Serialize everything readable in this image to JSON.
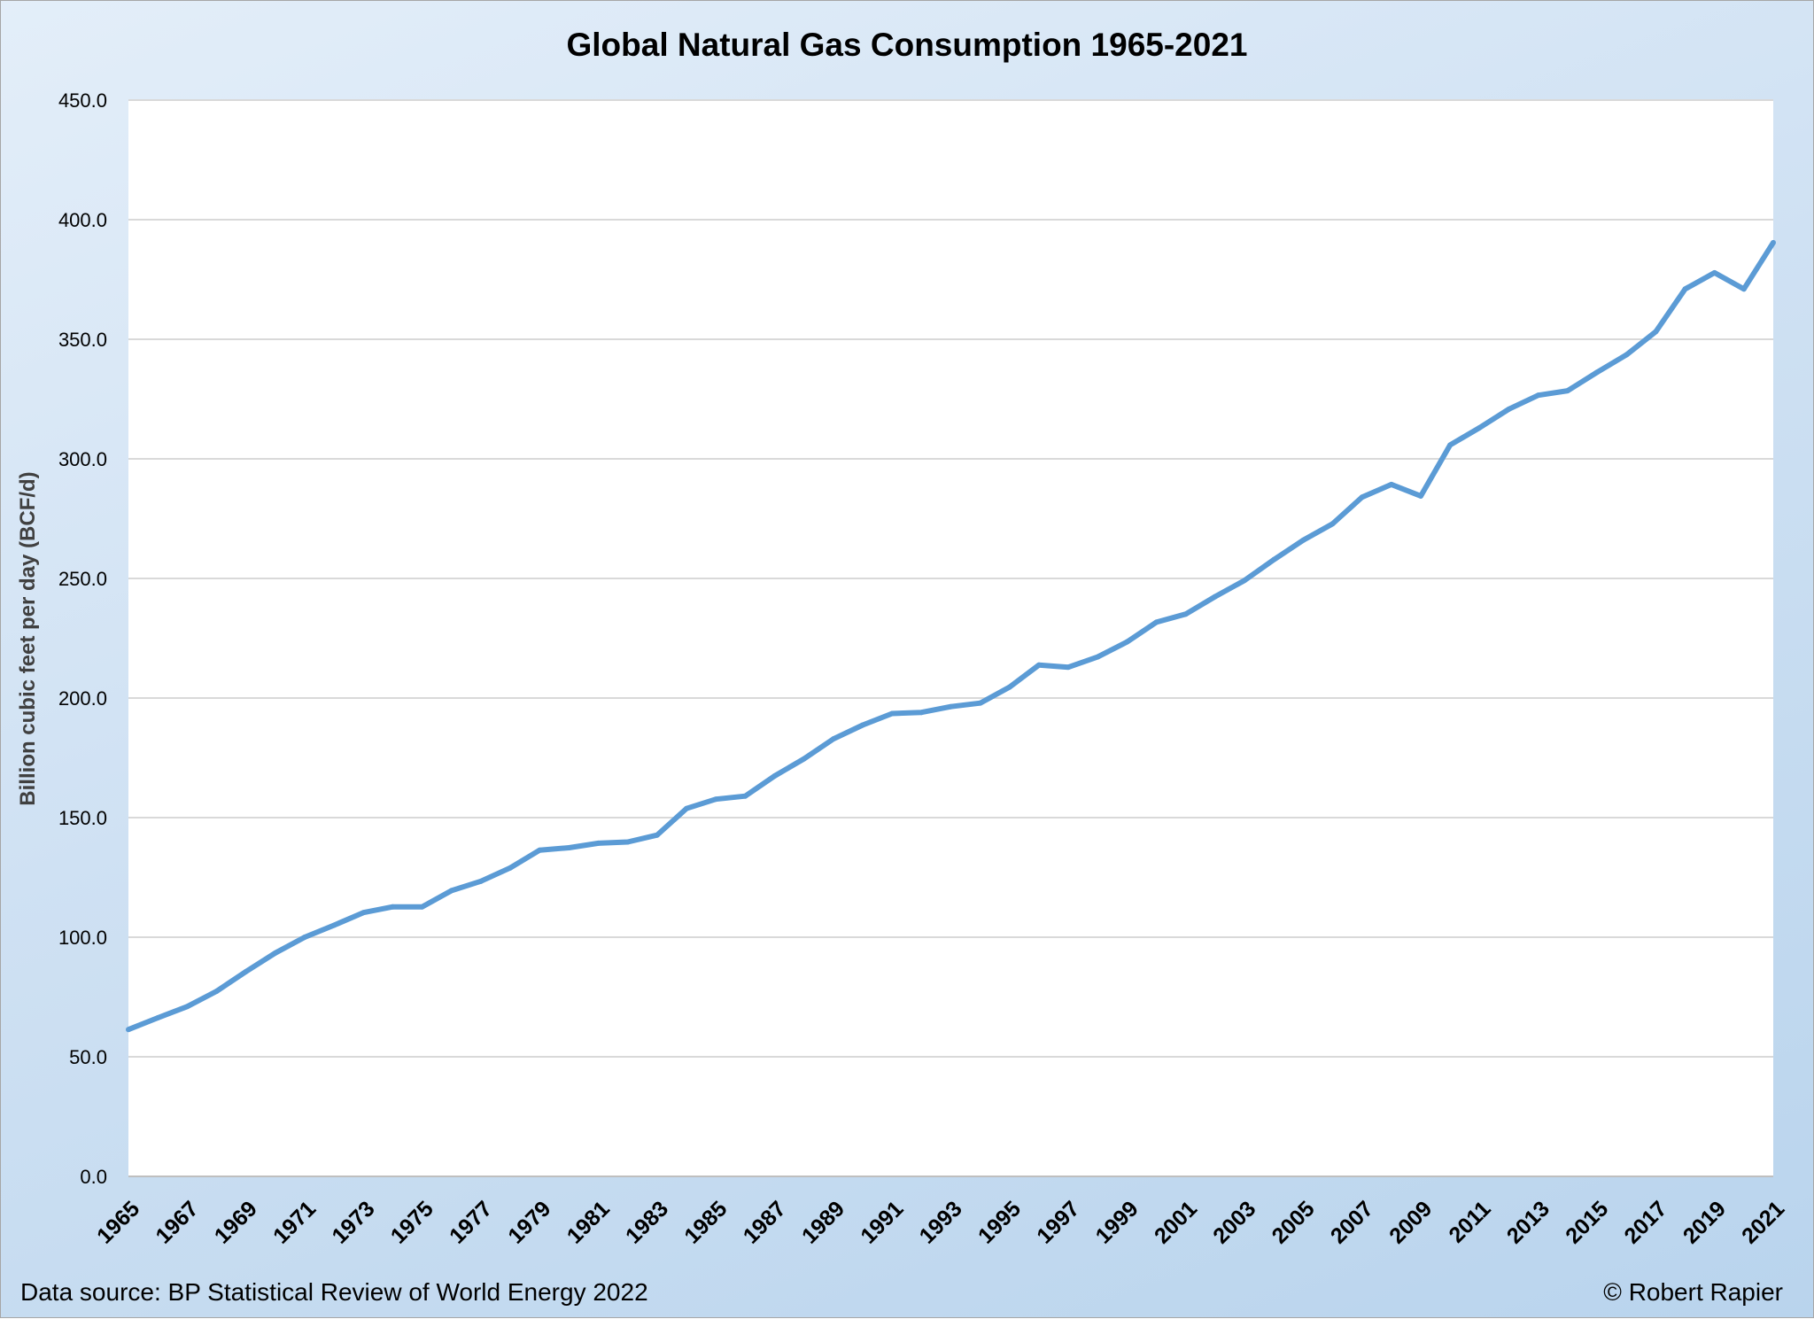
{
  "chart_data": {
    "type": "line",
    "title": "Global Natural Gas Consumption 1965-2021",
    "xlabel": "",
    "ylabel": "Billion cubic feet per day (BCF/d)",
    "ylim": [
      0,
      450
    ],
    "yticks": [
      "0.0",
      "50.0",
      "100.0",
      "150.0",
      "200.0",
      "250.0",
      "300.0",
      "350.0",
      "400.0",
      "450.0"
    ],
    "grid": true,
    "legend": "none",
    "line_color": "#5b9bd5",
    "x": [
      1965,
      1966,
      1967,
      1968,
      1969,
      1970,
      1971,
      1972,
      1973,
      1974,
      1975,
      1976,
      1977,
      1978,
      1979,
      1980,
      1981,
      1982,
      1983,
      1984,
      1985,
      1986,
      1987,
      1988,
      1989,
      1990,
      1991,
      1992,
      1993,
      1994,
      1995,
      1996,
      1997,
      1998,
      1999,
      2000,
      2001,
      2002,
      2003,
      2004,
      2005,
      2006,
      2007,
      2008,
      2009,
      2010,
      2011,
      2012,
      2013,
      2014,
      2015,
      2016,
      2017,
      2018,
      2019,
      2020,
      2021
    ],
    "xtick_labels": [
      "1965",
      "1967",
      "1969",
      "1971",
      "1973",
      "1975",
      "1977",
      "1979",
      "1981",
      "1983",
      "1985",
      "1987",
      "1989",
      "1991",
      "1993",
      "1995",
      "1997",
      "1999",
      "2001",
      "2003",
      "2005",
      "2007",
      "2009",
      "2011",
      "2013",
      "2015",
      "2017",
      "2019",
      "2021"
    ],
    "values": [
      61.4,
      66.3,
      71.0,
      77.4,
      85.6,
      93.4,
      100.0,
      105.0,
      110.3,
      112.7,
      112.7,
      119.5,
      123.4,
      129.0,
      136.4,
      137.4,
      139.3,
      139.8,
      142.7,
      153.8,
      157.7,
      159.0,
      167.4,
      174.6,
      182.9,
      188.7,
      193.5,
      194.0,
      196.4,
      197.9,
      204.6,
      213.8,
      212.9,
      217.2,
      223.5,
      231.7,
      235.1,
      242.4,
      249.2,
      257.9,
      266.0,
      272.9,
      284.0,
      289.3,
      284.5,
      305.8,
      313.0,
      320.8,
      326.6,
      328.5,
      336.2,
      343.5,
      353.2,
      371.0,
      377.8,
      371.0,
      390.4
    ]
  },
  "footer": {
    "source": "Data source: BP Statistical Review of World Energy 2022",
    "copyright": "© Robert Rapier"
  }
}
